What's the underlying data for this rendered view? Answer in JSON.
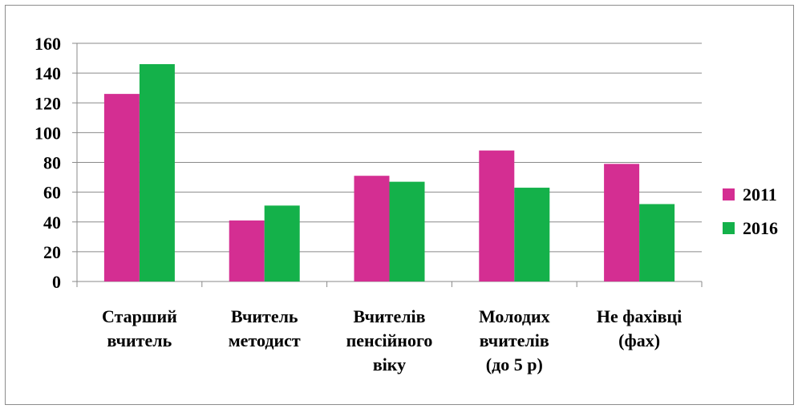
{
  "chart_data": {
    "type": "bar",
    "categories": [
      [
        "Старший",
        "вчитель"
      ],
      [
        "Вчитель",
        "методист"
      ],
      [
        "Вчителів",
        "пенсійного",
        "віку"
      ],
      [
        "Молодих",
        "вчителів",
        "(до 5 р)"
      ],
      [
        "Не фахівці",
        "(фах)"
      ]
    ],
    "series": [
      {
        "name": "2011",
        "color": "#d42e92",
        "values": [
          126,
          41,
          71,
          88,
          79
        ]
      },
      {
        "name": "2016",
        "color": "#14b14a",
        "values": [
          146,
          51,
          67,
          63,
          52
        ]
      }
    ],
    "ylim": [
      0,
      160
    ],
    "yticks": [
      0,
      20,
      40,
      60,
      80,
      100,
      120,
      140,
      160
    ],
    "grid": true,
    "legend": "right",
    "title": "",
    "xlabel": "",
    "ylabel": ""
  }
}
